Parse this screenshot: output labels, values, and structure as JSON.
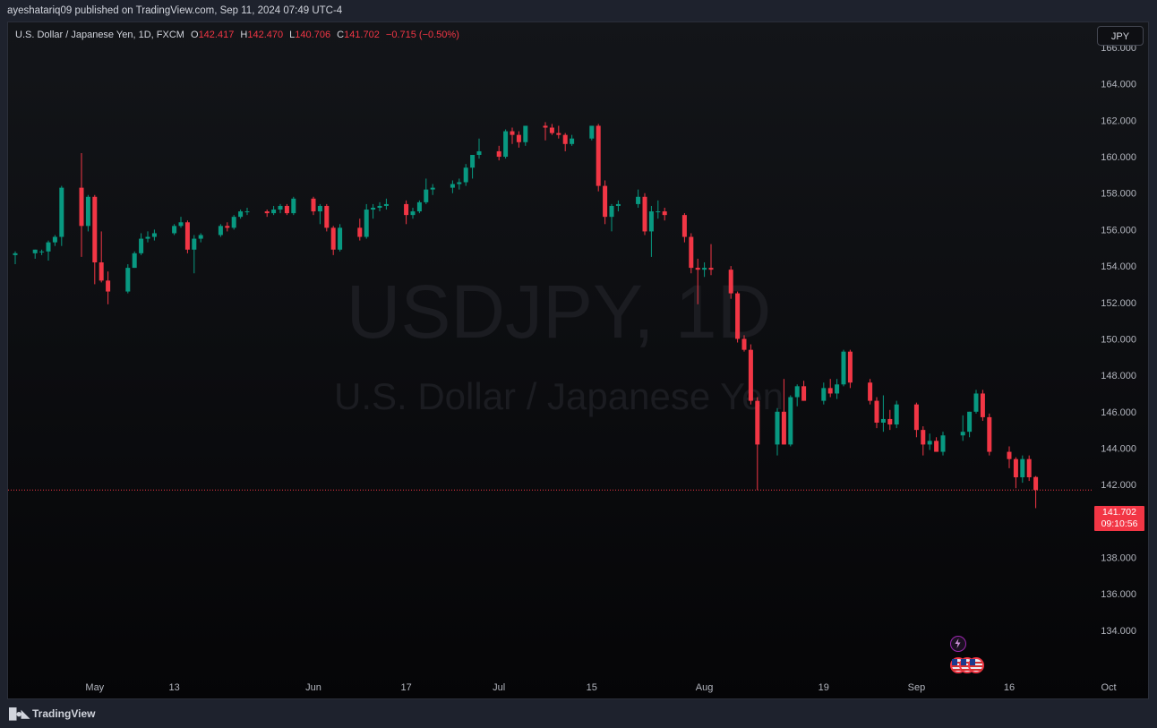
{
  "header": {
    "publisher_line": "ayeshatariq09 published on TradingView.com, Sep 11, 2024 07:49 UTC-4"
  },
  "legend": {
    "symbol": "U.S. Dollar / Japanese Yen, 1D, FXCM",
    "o_label": "O",
    "o_value": "142.417",
    "h_label": "H",
    "h_value": "142.470",
    "l_label": "L",
    "l_value": "140.706",
    "c_label": "C",
    "c_value": "141.702",
    "change": "−0.715 (−0.50%)"
  },
  "currency_button": "JPY",
  "watermark": {
    "ticker": "USDJPY, 1D",
    "name": "U.S. Dollar / Japanese Yen"
  },
  "price_tag": {
    "price": "141.702",
    "countdown": "09:10:56"
  },
  "footer": {
    "logo_text": "TradingView"
  },
  "colors": {
    "up": "#089981",
    "down": "#f23645",
    "background": "#0e0f13",
    "text": "#b2b5be"
  },
  "icons": {
    "logo": "tradingview-logo-icon",
    "events": [
      "lightning-icon",
      "us-flag-icon"
    ]
  },
  "chart_data": {
    "type": "candlestick",
    "interval": "1D",
    "ylim": [
      132.6,
      168.0
    ],
    "y_ticks": [
      "166.000",
      "164.000",
      "162.000",
      "160.000",
      "158.000",
      "156.000",
      "154.000",
      "152.000",
      "150.000",
      "148.000",
      "146.000",
      "144.000",
      "142.000",
      "140.000",
      "138.000",
      "136.000",
      "134.000"
    ],
    "x_ticks": [
      "May",
      "13",
      "Jun",
      "17",
      "Jul",
      "15",
      "Aug",
      "19",
      "Sep",
      "16",
      "Oct"
    ],
    "last_price": 141.702,
    "candles": [
      {
        "d": "2024-04-19",
        "o": 154.6,
        "h": 154.8,
        "l": 154.1,
        "c": 154.7
      },
      {
        "d": "2024-04-22",
        "o": 154.7,
        "h": 154.9,
        "l": 154.4,
        "c": 154.9
      },
      {
        "d": "2024-04-23",
        "o": 154.8,
        "h": 154.9,
        "l": 154.6,
        "c": 154.8
      },
      {
        "d": "2024-04-24",
        "o": 154.8,
        "h": 155.4,
        "l": 154.3,
        "c": 155.3
      },
      {
        "d": "2024-04-25",
        "o": 155.3,
        "h": 155.7,
        "l": 155.1,
        "c": 155.6
      },
      {
        "d": "2024-04-26",
        "o": 155.6,
        "h": 158.4,
        "l": 155.1,
        "c": 158.3
      },
      {
        "d": "2024-04-29",
        "o": 158.3,
        "h": 160.2,
        "l": 154.5,
        "c": 156.2
      },
      {
        "d": "2024-04-30",
        "o": 156.2,
        "h": 157.9,
        "l": 155.9,
        "c": 157.8
      },
      {
        "d": "2024-05-01",
        "o": 157.8,
        "h": 157.9,
        "l": 153.0,
        "c": 154.2
      },
      {
        "d": "2024-05-02",
        "o": 154.2,
        "h": 155.9,
        "l": 153.1,
        "c": 153.2
      },
      {
        "d": "2024-05-03",
        "o": 153.2,
        "h": 153.7,
        "l": 151.9,
        "c": 152.6
      },
      {
        "d": "2024-05-06",
        "o": 152.6,
        "h": 154.1,
        "l": 152.5,
        "c": 153.9
      },
      {
        "d": "2024-05-07",
        "o": 153.9,
        "h": 154.8,
        "l": 153.9,
        "c": 154.7
      },
      {
        "d": "2024-05-08",
        "o": 154.7,
        "h": 155.8,
        "l": 154.6,
        "c": 155.5
      },
      {
        "d": "2024-05-09",
        "o": 155.5,
        "h": 155.9,
        "l": 155.3,
        "c": 155.6
      },
      {
        "d": "2024-05-10",
        "o": 155.6,
        "h": 156.0,
        "l": 155.4,
        "c": 155.8
      },
      {
        "d": "2024-05-13",
        "o": 155.8,
        "h": 156.3,
        "l": 155.7,
        "c": 156.2
      },
      {
        "d": "2024-05-14",
        "o": 156.2,
        "h": 156.7,
        "l": 156.1,
        "c": 156.4
      },
      {
        "d": "2024-05-15",
        "o": 156.4,
        "h": 156.5,
        "l": 154.7,
        "c": 154.9
      },
      {
        "d": "2024-05-16",
        "o": 154.9,
        "h": 155.7,
        "l": 153.6,
        "c": 155.5
      },
      {
        "d": "2024-05-17",
        "o": 155.5,
        "h": 155.8,
        "l": 155.3,
        "c": 155.7
      },
      {
        "d": "2024-05-20",
        "o": 155.7,
        "h": 156.3,
        "l": 155.6,
        "c": 156.2
      },
      {
        "d": "2024-05-21",
        "o": 156.2,
        "h": 156.4,
        "l": 155.9,
        "c": 156.1
      },
      {
        "d": "2024-05-22",
        "o": 156.1,
        "h": 156.8,
        "l": 156.0,
        "c": 156.7
      },
      {
        "d": "2024-05-23",
        "o": 156.7,
        "h": 157.1,
        "l": 156.6,
        "c": 157.0
      },
      {
        "d": "2024-05-24",
        "o": 157.0,
        "h": 157.2,
        "l": 156.8,
        "c": 157.0
      },
      {
        "d": "2024-05-27",
        "o": 157.0,
        "h": 157.1,
        "l": 156.7,
        "c": 156.9
      },
      {
        "d": "2024-05-28",
        "o": 156.9,
        "h": 157.3,
        "l": 156.8,
        "c": 157.1
      },
      {
        "d": "2024-05-29",
        "o": 157.1,
        "h": 157.4,
        "l": 156.9,
        "c": 157.3
      },
      {
        "d": "2024-05-30",
        "o": 157.3,
        "h": 157.4,
        "l": 156.8,
        "c": 156.9
      },
      {
        "d": "2024-05-31",
        "o": 156.9,
        "h": 157.8,
        "l": 156.8,
        "c": 157.7
      },
      {
        "d": "2024-06-03",
        "o": 157.7,
        "h": 157.8,
        "l": 156.8,
        "c": 157.0
      },
      {
        "d": "2024-06-04",
        "o": 157.0,
        "h": 157.4,
        "l": 156.3,
        "c": 157.3
      },
      {
        "d": "2024-06-05",
        "o": 157.3,
        "h": 157.4,
        "l": 155.9,
        "c": 156.1
      },
      {
        "d": "2024-06-06",
        "o": 156.1,
        "h": 156.2,
        "l": 154.6,
        "c": 154.9
      },
      {
        "d": "2024-06-07",
        "o": 154.9,
        "h": 156.3,
        "l": 154.8,
        "c": 156.1
      },
      {
        "d": "2024-06-10",
        "o": 156.1,
        "h": 156.6,
        "l": 155.4,
        "c": 155.6
      },
      {
        "d": "2024-06-11",
        "o": 155.6,
        "h": 157.4,
        "l": 155.5,
        "c": 157.1
      },
      {
        "d": "2024-06-12",
        "o": 157.1,
        "h": 157.4,
        "l": 156.6,
        "c": 157.2
      },
      {
        "d": "2024-06-13",
        "o": 157.2,
        "h": 157.5,
        "l": 157.0,
        "c": 157.3
      },
      {
        "d": "2024-06-14",
        "o": 157.3,
        "h": 157.7,
        "l": 157.1,
        "c": 157.4
      },
      {
        "d": "2024-06-17",
        "o": 157.4,
        "h": 157.6,
        "l": 156.3,
        "c": 156.8
      },
      {
        "d": "2024-06-18",
        "o": 156.8,
        "h": 157.2,
        "l": 156.6,
        "c": 157.0
      },
      {
        "d": "2024-06-19",
        "o": 157.0,
        "h": 157.6,
        "l": 156.9,
        "c": 157.5
      },
      {
        "d": "2024-06-20",
        "o": 157.5,
        "h": 158.8,
        "l": 157.4,
        "c": 158.2
      },
      {
        "d": "2024-06-21",
        "o": 158.2,
        "h": 158.5,
        "l": 157.9,
        "c": 158.3
      },
      {
        "d": "2024-06-24",
        "o": 158.3,
        "h": 158.7,
        "l": 158.0,
        "c": 158.5
      },
      {
        "d": "2024-06-25",
        "o": 158.5,
        "h": 158.8,
        "l": 158.2,
        "c": 158.6
      },
      {
        "d": "2024-06-26",
        "o": 158.6,
        "h": 159.6,
        "l": 158.4,
        "c": 159.4
      },
      {
        "d": "2024-06-27",
        "o": 159.4,
        "h": 160.1,
        "l": 158.8,
        "c": 160.1
      },
      {
        "d": "2024-06-28",
        "o": 160.1,
        "h": 161.0,
        "l": 159.9,
        "c": 160.3
      },
      {
        "d": "2024-07-01",
        "o": 160.3,
        "h": 160.6,
        "l": 159.8,
        "c": 160.0
      },
      {
        "d": "2024-07-02",
        "o": 160.0,
        "h": 161.5,
        "l": 159.9,
        "c": 161.4
      },
      {
        "d": "2024-07-03",
        "o": 161.4,
        "h": 161.6,
        "l": 160.7,
        "c": 161.2
      },
      {
        "d": "2024-07-04",
        "o": 161.2,
        "h": 161.4,
        "l": 160.5,
        "c": 160.8
      },
      {
        "d": "2024-07-05",
        "o": 160.8,
        "h": 161.7,
        "l": 160.6,
        "c": 161.7
      },
      {
        "d": "2024-07-08",
        "o": 161.7,
        "h": 161.9,
        "l": 160.9,
        "c": 161.6
      },
      {
        "d": "2024-07-09",
        "o": 161.6,
        "h": 161.8,
        "l": 161.2,
        "c": 161.3
      },
      {
        "d": "2024-07-10",
        "o": 161.3,
        "h": 161.7,
        "l": 161.0,
        "c": 161.2
      },
      {
        "d": "2024-07-11",
        "o": 161.2,
        "h": 161.3,
        "l": 160.3,
        "c": 160.7
      },
      {
        "d": "2024-07-12",
        "o": 160.7,
        "h": 161.2,
        "l": 160.6,
        "c": 161.0
      },
      {
        "d": "2024-07-15",
        "o": 161.0,
        "h": 161.7,
        "l": 160.9,
        "c": 161.7
      },
      {
        "d": "2024-07-16",
        "o": 161.7,
        "h": 161.8,
        "l": 158.1,
        "c": 158.4
      },
      {
        "d": "2024-07-17",
        "o": 158.4,
        "h": 158.7,
        "l": 156.3,
        "c": 156.7
      },
      {
        "d": "2024-07-18",
        "o": 156.7,
        "h": 157.4,
        "l": 155.9,
        "c": 157.3
      },
      {
        "d": "2024-07-19",
        "o": 157.3,
        "h": 157.6,
        "l": 157.0,
        "c": 157.4
      },
      {
        "d": "2024-07-22",
        "o": 157.4,
        "h": 158.2,
        "l": 157.2,
        "c": 157.8
      },
      {
        "d": "2024-07-23",
        "o": 157.8,
        "h": 158.0,
        "l": 155.7,
        "c": 155.9
      },
      {
        "d": "2024-07-24",
        "o": 155.9,
        "h": 157.3,
        "l": 154.5,
        "c": 157.0
      },
      {
        "d": "2024-07-25",
        "o": 157.0,
        "h": 157.6,
        "l": 156.6,
        "c": 157.0
      },
      {
        "d": "2024-07-26",
        "o": 157.0,
        "h": 157.2,
        "l": 156.5,
        "c": 156.8
      },
      {
        "d": "2024-07-29",
        "o": 156.8,
        "h": 156.9,
        "l": 155.3,
        "c": 155.6
      },
      {
        "d": "2024-07-30",
        "o": 155.6,
        "h": 155.8,
        "l": 153.6,
        "c": 153.9
      },
      {
        "d": "2024-07-31",
        "o": 153.9,
        "h": 154.4,
        "l": 151.9,
        "c": 153.8
      },
      {
        "d": "2024-08-01",
        "o": 153.8,
        "h": 154.2,
        "l": 153.4,
        "c": 153.9
      },
      {
        "d": "2024-08-02",
        "o": 153.9,
        "h": 155.2,
        "l": 153.5,
        "c": 153.8
      },
      {
        "d": "2024-08-05",
        "o": 153.8,
        "h": 154.0,
        "l": 152.2,
        "c": 152.5
      },
      {
        "d": "2024-08-06",
        "o": 152.5,
        "h": 152.6,
        "l": 149.8,
        "c": 150.0
      },
      {
        "d": "2024-08-07",
        "o": 150.0,
        "h": 150.2,
        "l": 149.3,
        "c": 149.4
      },
      {
        "d": "2024-08-08",
        "o": 149.4,
        "h": 149.7,
        "l": 146.4,
        "c": 146.6
      },
      {
        "d": "2024-08-09",
        "o": 146.6,
        "h": 146.8,
        "l": 141.7,
        "c": 144.2
      },
      {
        "d": "2024-08-12",
        "o": 144.2,
        "h": 146.2,
        "l": 143.6,
        "c": 146.0
      },
      {
        "d": "2024-08-13",
        "o": 146.0,
        "h": 147.8,
        "l": 144.2,
        "c": 144.2
      },
      {
        "d": "2024-08-14",
        "o": 144.2,
        "h": 146.9,
        "l": 144.1,
        "c": 146.8
      },
      {
        "d": "2024-08-15",
        "o": 146.8,
        "h": 147.5,
        "l": 146.3,
        "c": 147.4
      },
      {
        "d": "2024-08-16",
        "o": 147.4,
        "h": 147.7,
        "l": 146.6,
        "c": 146.6
      },
      {
        "d": "2024-08-19",
        "o": 146.6,
        "h": 147.6,
        "l": 146.4,
        "c": 147.3
      },
      {
        "d": "2024-08-20",
        "o": 147.3,
        "h": 147.8,
        "l": 146.8,
        "c": 147.0
      },
      {
        "d": "2024-08-21",
        "o": 147.0,
        "h": 147.8,
        "l": 146.7,
        "c": 147.5
      },
      {
        "d": "2024-08-22",
        "o": 147.5,
        "h": 149.4,
        "l": 147.4,
        "c": 149.3
      },
      {
        "d": "2024-08-23",
        "o": 149.3,
        "h": 149.4,
        "l": 147.3,
        "c": 147.6
      },
      {
        "d": "2024-08-26",
        "o": 147.6,
        "h": 147.8,
        "l": 146.4,
        "c": 146.6
      },
      {
        "d": "2024-08-27",
        "o": 146.6,
        "h": 146.8,
        "l": 145.1,
        "c": 145.4
      },
      {
        "d": "2024-08-28",
        "o": 145.4,
        "h": 146.9,
        "l": 144.9,
        "c": 145.6
      },
      {
        "d": "2024-08-29",
        "o": 145.6,
        "h": 146.1,
        "l": 145.0,
        "c": 145.3
      },
      {
        "d": "2024-08-30",
        "o": 145.3,
        "h": 146.6,
        "l": 145.1,
        "c": 146.4
      },
      {
        "d": "2024-09-02",
        "o": 146.4,
        "h": 146.5,
        "l": 144.6,
        "c": 145.0
      },
      {
        "d": "2024-09-03",
        "o": 145.0,
        "h": 145.2,
        "l": 143.6,
        "c": 144.2
      },
      {
        "d": "2024-09-04",
        "o": 144.2,
        "h": 144.8,
        "l": 143.9,
        "c": 144.4
      },
      {
        "d": "2024-09-05",
        "o": 144.4,
        "h": 144.6,
        "l": 143.8,
        "c": 143.8
      },
      {
        "d": "2024-09-06",
        "o": 143.8,
        "h": 144.9,
        "l": 143.6,
        "c": 144.7
      },
      {
        "d": "2024-09-09",
        "o": 144.7,
        "h": 145.8,
        "l": 144.4,
        "c": 144.9
      },
      {
        "d": "2024-09-10",
        "o": 144.9,
        "h": 146.0,
        "l": 144.6,
        "c": 146.0
      },
      {
        "d": "2024-09-11",
        "o": 146.0,
        "h": 147.2,
        "l": 145.9,
        "c": 147.0
      },
      {
        "d": "2024-09-12",
        "o": 147.0,
        "h": 147.2,
        "l": 145.5,
        "c": 145.7
      },
      {
        "d": "2024-09-13",
        "o": 145.7,
        "h": 145.9,
        "l": 143.6,
        "c": 143.8
      },
      {
        "d": "2024-09-16",
        "o": 143.8,
        "h": 144.1,
        "l": 142.9,
        "c": 143.4
      },
      {
        "d": "2024-09-17",
        "o": 143.4,
        "h": 143.5,
        "l": 141.8,
        "c": 142.4
      },
      {
        "d": "2024-09-18",
        "o": 142.4,
        "h": 143.6,
        "l": 142.1,
        "c": 143.4
      },
      {
        "d": "2024-09-19",
        "o": 143.4,
        "h": 143.6,
        "l": 142.2,
        "c": 142.4
      },
      {
        "d": "2024-09-20",
        "o": 142.417,
        "h": 142.47,
        "l": 140.706,
        "c": 141.702
      }
    ]
  }
}
